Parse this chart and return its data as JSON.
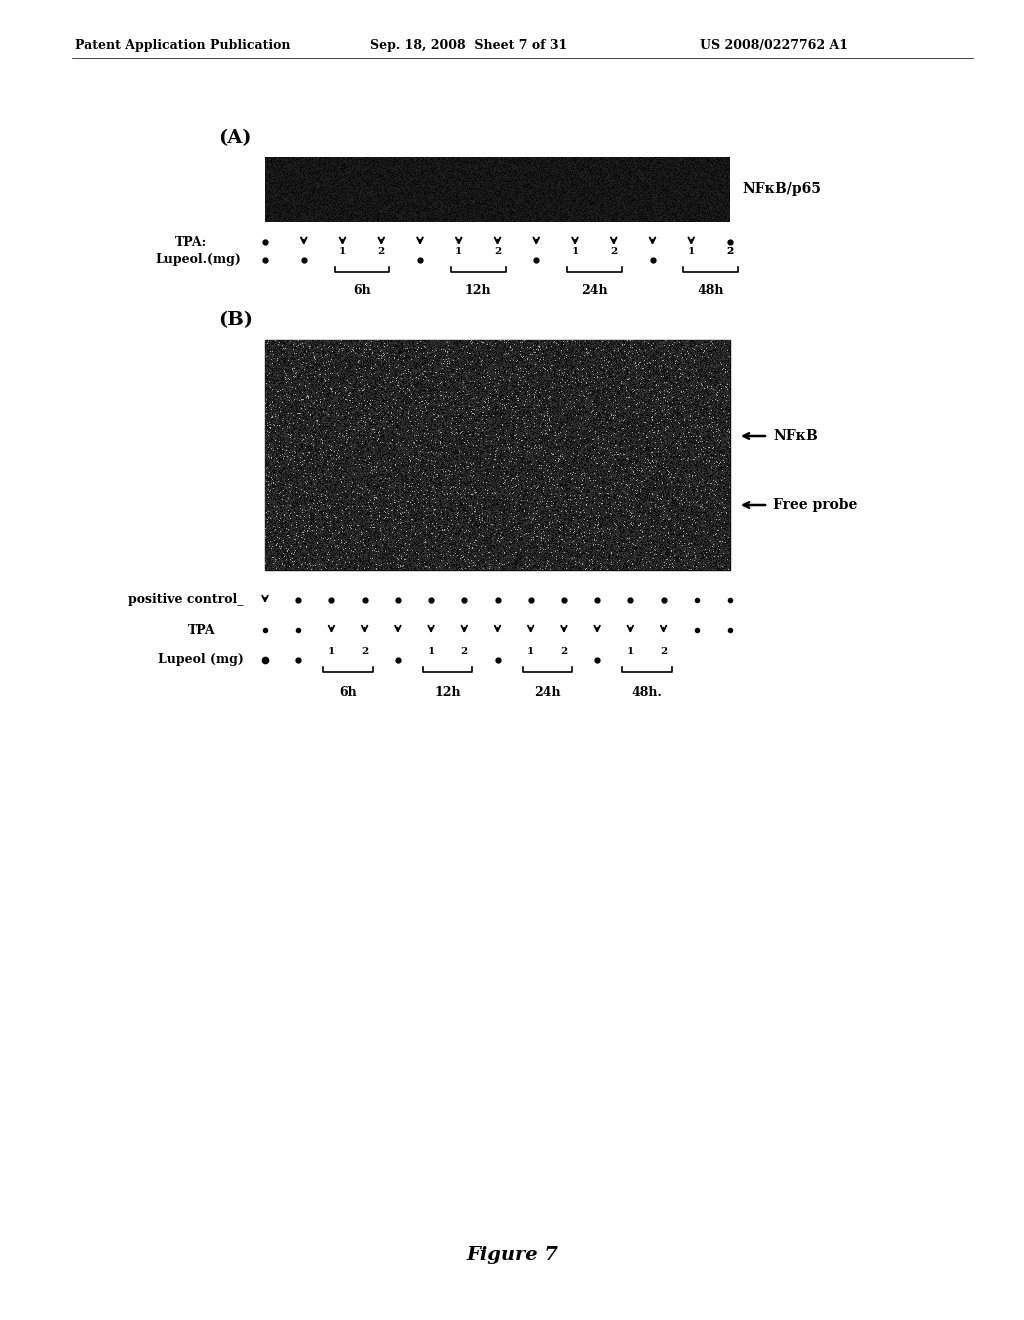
{
  "bg_color": "#ffffff",
  "header_left": "Patent Application Publication",
  "header_mid": "Sep. 18, 2008  Sheet 7 of 31",
  "header_right": "US 2008/0227762 A1",
  "figure_caption": "Figure 7",
  "panel_A_label": "(A)",
  "panel_B_label": "(B)",
  "panel_A_band_label": "NFκB/p65",
  "panel_B_nfkb_label": "NFκB",
  "panel_B_probe_label": "Free probe",
  "panel_A_tpa_label": "TPA:",
  "panel_A_lupeol_label": "Lupeol.(mg)",
  "panel_B_pos_ctrl_label": "positive control_",
  "panel_B_tpa_label": "TPA",
  "panel_B_lupeol_label": "Lupeol (mg)",
  "time_labels_A": [
    "6h",
    "12h",
    "24h",
    "48h"
  ],
  "time_labels_B": [
    "6h",
    "12h",
    "24h",
    "48h."
  ],
  "noise_seed": 42
}
